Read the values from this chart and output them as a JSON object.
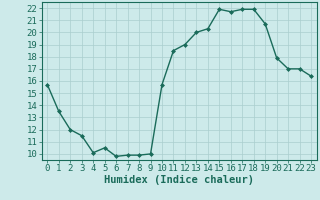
{
  "x": [
    0,
    1,
    2,
    3,
    4,
    5,
    6,
    7,
    8,
    9,
    10,
    11,
    12,
    13,
    14,
    15,
    16,
    17,
    18,
    19,
    20,
    21,
    22,
    23
  ],
  "y": [
    15.7,
    13.5,
    12.0,
    11.5,
    10.1,
    10.5,
    9.8,
    9.9,
    9.9,
    10.0,
    15.7,
    18.5,
    19.0,
    20.0,
    20.3,
    21.9,
    21.7,
    21.9,
    21.9,
    20.7,
    17.9,
    17.0,
    17.0,
    16.4
  ],
  "line_color": "#1a6b5a",
  "marker": "D",
  "marker_size": 2,
  "bg_color": "#cdeaea",
  "grid_color": "#aacece",
  "xlabel": "Humidex (Indice chaleur)",
  "ylim": [
    9.5,
    22.5
  ],
  "xlim": [
    -0.5,
    23.5
  ],
  "yticks": [
    10,
    11,
    12,
    13,
    14,
    15,
    16,
    17,
    18,
    19,
    20,
    21,
    22
  ],
  "xticks": [
    0,
    1,
    2,
    3,
    4,
    5,
    6,
    7,
    8,
    9,
    10,
    11,
    12,
    13,
    14,
    15,
    16,
    17,
    18,
    19,
    20,
    21,
    22,
    23
  ],
  "xlabel_fontsize": 7.5,
  "tick_fontsize": 6.5,
  "line_width": 1.0
}
